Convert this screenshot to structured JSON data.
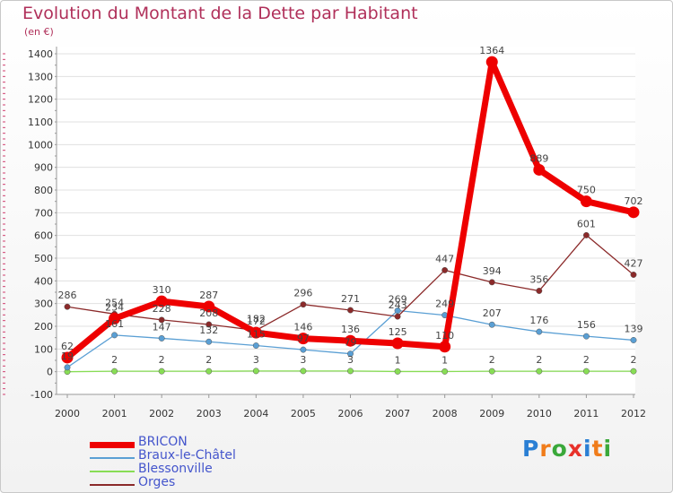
{
  "title": "Evolution du Montant de la Dette par Habitant",
  "subtitle": "(en €)",
  "logo": [
    "P",
    "r",
    "o",
    "x",
    "i",
    "t",
    "i"
  ],
  "logo_colors": [
    "#2a7fd4",
    "#f07c1a",
    "#3aa83a",
    "#e8312a",
    "#2a7fd4",
    "#f07c1a",
    "#3aa83a"
  ],
  "chart_data": {
    "type": "line",
    "title": "Evolution du Montant de la Dette par Habitant",
    "ylabel": "(en €)",
    "xlabel": "",
    "x": [
      "2000",
      "2001",
      "2002",
      "2003",
      "2004",
      "2005",
      "2006",
      "2007",
      "2008",
      "2009",
      "2010",
      "2011",
      "2012"
    ],
    "yticks": [
      "-100",
      "0",
      "100",
      "200",
      "300",
      "400",
      "500",
      "600",
      "700",
      "800",
      "900",
      "1000",
      "1100",
      "1200",
      "1300",
      "1400"
    ],
    "ylim": [
      -100,
      1400
    ],
    "grid": "horizontal",
    "legend_position": "bottom-left",
    "series": [
      {
        "name": "BRICON",
        "color": "#ee0000",
        "values": [
          62,
          234,
          310,
          287,
          172,
          146,
          136,
          125,
          110,
          1364,
          889,
          750,
          702
        ],
        "labels": [
          "62",
          "234",
          "310",
          "287",
          "172",
          "146",
          "136",
          "125",
          "110",
          "1364",
          "889",
          "750",
          "702"
        ]
      },
      {
        "name": "Braux-le-Châtel",
        "color": "#5a9fd4",
        "values": [
          19,
          161,
          147,
          132,
          115,
          97,
          79,
          269,
          249,
          207,
          176,
          156,
          139
        ],
        "labels": [
          "19",
          "161",
          "147",
          "132",
          "115",
          "97",
          "79",
          "269",
          "249",
          "207",
          "176",
          "156",
          "139"
        ]
      },
      {
        "name": "Blessonville",
        "color": "#88dd55",
        "values": [
          0,
          2,
          2,
          2,
          3,
          3,
          3,
          1,
          1,
          2,
          2,
          2,
          2
        ],
        "labels": [
          "",
          "2",
          "2",
          "2",
          "3",
          "3",
          "3",
          "1",
          "1",
          "2",
          "2",
          "2",
          "2"
        ]
      },
      {
        "name": "Orges",
        "color": "#8b2a2a",
        "values": [
          286,
          254,
          228,
          208,
          182,
          296,
          271,
          243,
          447,
          394,
          356,
          601,
          427
        ],
        "labels": [
          "286",
          "254",
          "228",
          "208",
          "182",
          "296",
          "271",
          "243",
          "447",
          "394",
          "356",
          "601",
          "427"
        ]
      }
    ]
  }
}
